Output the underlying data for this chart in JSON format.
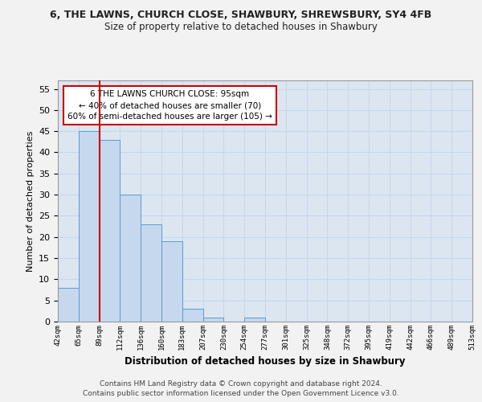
{
  "title": "6, THE LAWNS, CHURCH CLOSE, SHAWBURY, SHREWSBURY, SY4 4FB",
  "subtitle": "Size of property relative to detached houses in Shawbury",
  "xlabel": "Distribution of detached houses by size in Shawbury",
  "ylabel": "Number of detached properties",
  "bar_values": [
    8,
    45,
    43,
    30,
    23,
    19,
    3,
    1,
    0,
    1,
    0,
    0,
    0,
    0,
    0,
    0,
    0,
    0,
    0,
    0
  ],
  "x_labels": [
    "42sqm",
    "65sqm",
    "89sqm",
    "112sqm",
    "136sqm",
    "160sqm",
    "183sqm",
    "207sqm",
    "230sqm",
    "254sqm",
    "277sqm",
    "301sqm",
    "325sqm",
    "348sqm",
    "372sqm",
    "395sqm",
    "419sqm",
    "442sqm",
    "466sqm",
    "489sqm",
    "513sqm"
  ],
  "bar_color": "#c5d8ed",
  "bar_edge_color": "#5b9bd5",
  "grid_color": "#c5d8ed",
  "vline_x": 2.0,
  "vline_color": "#cc0000",
  "annotation_text": "6 THE LAWNS CHURCH CLOSE: 95sqm\n← 40% of detached houses are smaller (70)\n60% of semi-detached houses are larger (105) →",
  "annotation_box_color": "#ffffff",
  "annotation_box_edge": "#cc0000",
  "ylim": [
    0,
    57
  ],
  "yticks": [
    0,
    5,
    10,
    15,
    20,
    25,
    30,
    35,
    40,
    45,
    50,
    55
  ],
  "footer1": "Contains HM Land Registry data © Crown copyright and database right 2024.",
  "footer2": "Contains public sector information licensed under the Open Government Licence v3.0.",
  "plot_bg_color": "#dce6f1",
  "fig_bg_color": "#f2f2f2"
}
